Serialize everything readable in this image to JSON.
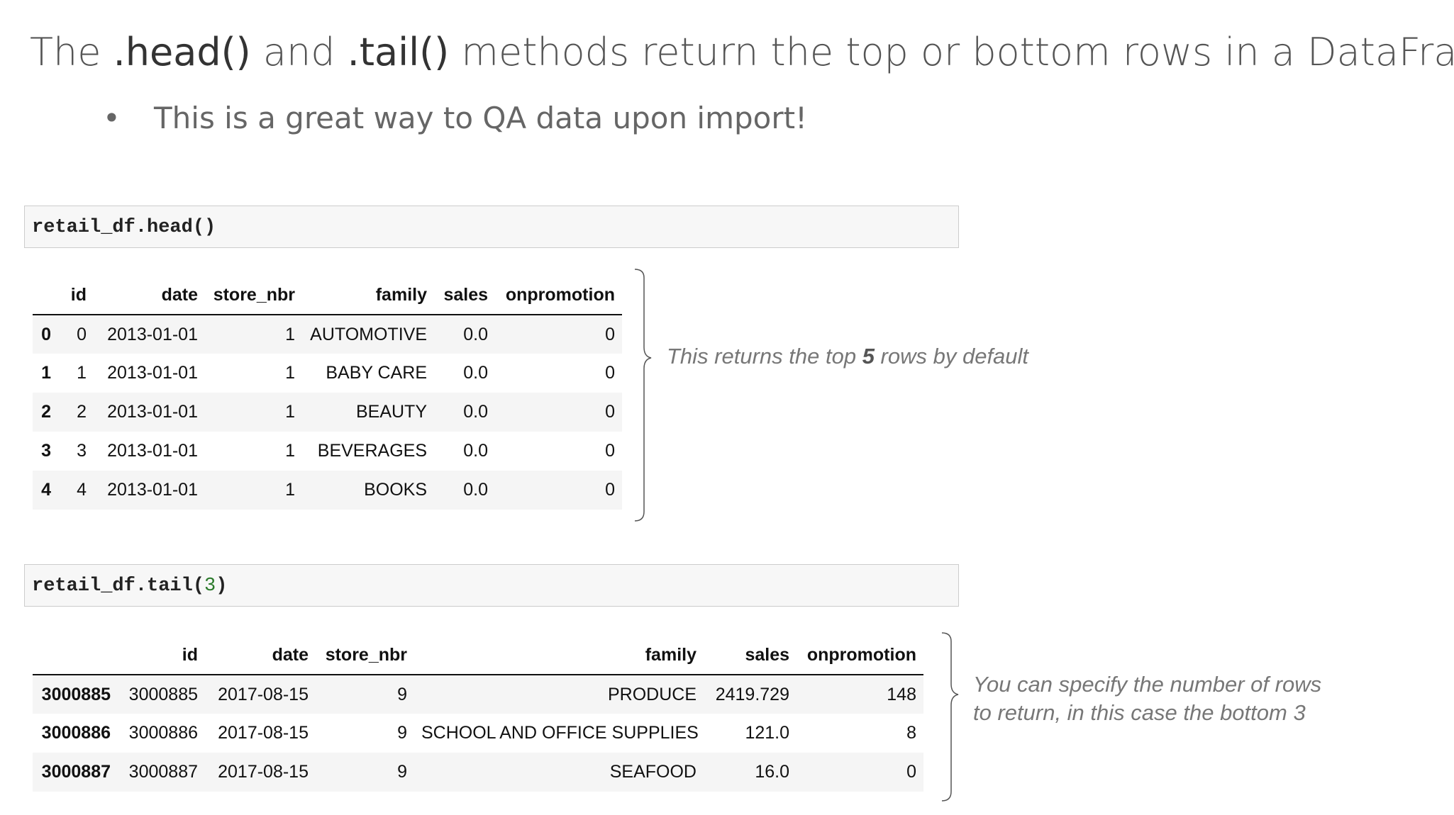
{
  "header": {
    "title": {
      "parts": [
        "The ",
        ".head()",
        " and ",
        ".tail()",
        " methods return the top or bottom rows in a DataFrame"
      ]
    },
    "bullet": "This is a great way to QA data upon import!"
  },
  "head_cell": {
    "code": "retail_df.head()"
  },
  "head_table": {
    "columns": [
      "id",
      "date",
      "store_nbr",
      "family",
      "sales",
      "onpromotion"
    ],
    "rows": [
      {
        "index": "0",
        "cells": [
          "0",
          "2013-01-01",
          "1",
          "AUTOMOTIVE",
          "0.0",
          "0"
        ]
      },
      {
        "index": "1",
        "cells": [
          "1",
          "2013-01-01",
          "1",
          "BABY CARE",
          "0.0",
          "0"
        ]
      },
      {
        "index": "2",
        "cells": [
          "2",
          "2013-01-01",
          "1",
          "BEAUTY",
          "0.0",
          "0"
        ]
      },
      {
        "index": "3",
        "cells": [
          "3",
          "2013-01-01",
          "1",
          "BEVERAGES",
          "0.0",
          "0"
        ]
      },
      {
        "index": "4",
        "cells": [
          "4",
          "2013-01-01",
          "1",
          "BOOKS",
          "0.0",
          "0"
        ]
      }
    ]
  },
  "head_note": {
    "parts": [
      "This returns the top ",
      "5",
      " rows by default"
    ]
  },
  "tail_cell": {
    "code": [
      "retail_df.tail(",
      "3",
      ")"
    ]
  },
  "tail_table": {
    "columns": [
      "id",
      "date",
      "store_nbr",
      "family",
      "sales",
      "onpromotion"
    ],
    "rows": [
      {
        "index": "3000885",
        "cells": [
          "3000885",
          "2017-08-15",
          "9",
          "PRODUCE",
          "2419.729",
          "148"
        ]
      },
      {
        "index": "3000886",
        "cells": [
          "3000886",
          "2017-08-15",
          "9",
          "SCHOOL AND OFFICE SUPPLIES",
          "121.0",
          "8"
        ]
      },
      {
        "index": "3000887",
        "cells": [
          "3000887",
          "2017-08-15",
          "9",
          "SEAFOOD",
          "16.0",
          "0"
        ]
      }
    ]
  },
  "tail_note": {
    "lines": [
      "You can specify the number of rows",
      "to return, in this case the bottom 3"
    ]
  }
}
